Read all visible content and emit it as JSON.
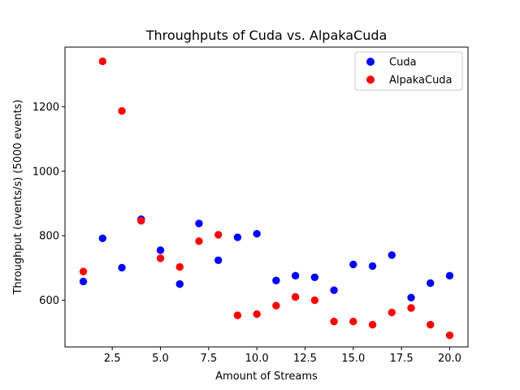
{
  "chart_data": {
    "type": "scatter",
    "title": "Throughputs of Cuda vs. AlpakaCuda",
    "xlabel": "Amount of Streams",
    "ylabel": "Throughput (events/s) (5000 events)",
    "xlim": [
      0.05,
      20.95
    ],
    "ylim": [
      455,
      1385
    ],
    "xticks": [
      2.5,
      5.0,
      7.5,
      10.0,
      12.5,
      15.0,
      17.5,
      20.0
    ],
    "xtick_labels": [
      "2.5",
      "5.0",
      "7.5",
      "10.0",
      "12.5",
      "15.0",
      "17.5",
      "20.0"
    ],
    "yticks": [
      600,
      800,
      1000,
      1200
    ],
    "ytick_labels": [
      "600",
      "800",
      "1000",
      "1200"
    ],
    "grid": false,
    "legend_position": "top-right",
    "series": [
      {
        "name": "Cuda",
        "color": "#0000ff",
        "x": [
          1,
          2,
          3,
          4,
          5,
          6,
          7,
          8,
          9,
          10,
          11,
          12,
          13,
          14,
          15,
          16,
          17,
          18,
          19,
          20
        ],
        "y": [
          658,
          792,
          701,
          851,
          755,
          650,
          838,
          724,
          795,
          806,
          661,
          676,
          671,
          631,
          711,
          706,
          740,
          608,
          653,
          676
        ]
      },
      {
        "name": "AlpakaCuda",
        "color": "#ff0000",
        "x": [
          1,
          2,
          3,
          4,
          5,
          6,
          7,
          8,
          9,
          10,
          11,
          12,
          13,
          14,
          15,
          16,
          17,
          18,
          19,
          20
        ],
        "y": [
          689,
          1341,
          1187,
          846,
          730,
          703,
          783,
          803,
          553,
          557,
          583,
          610,
          600,
          534,
          534,
          524,
          562,
          576,
          524,
          491
        ]
      }
    ]
  }
}
